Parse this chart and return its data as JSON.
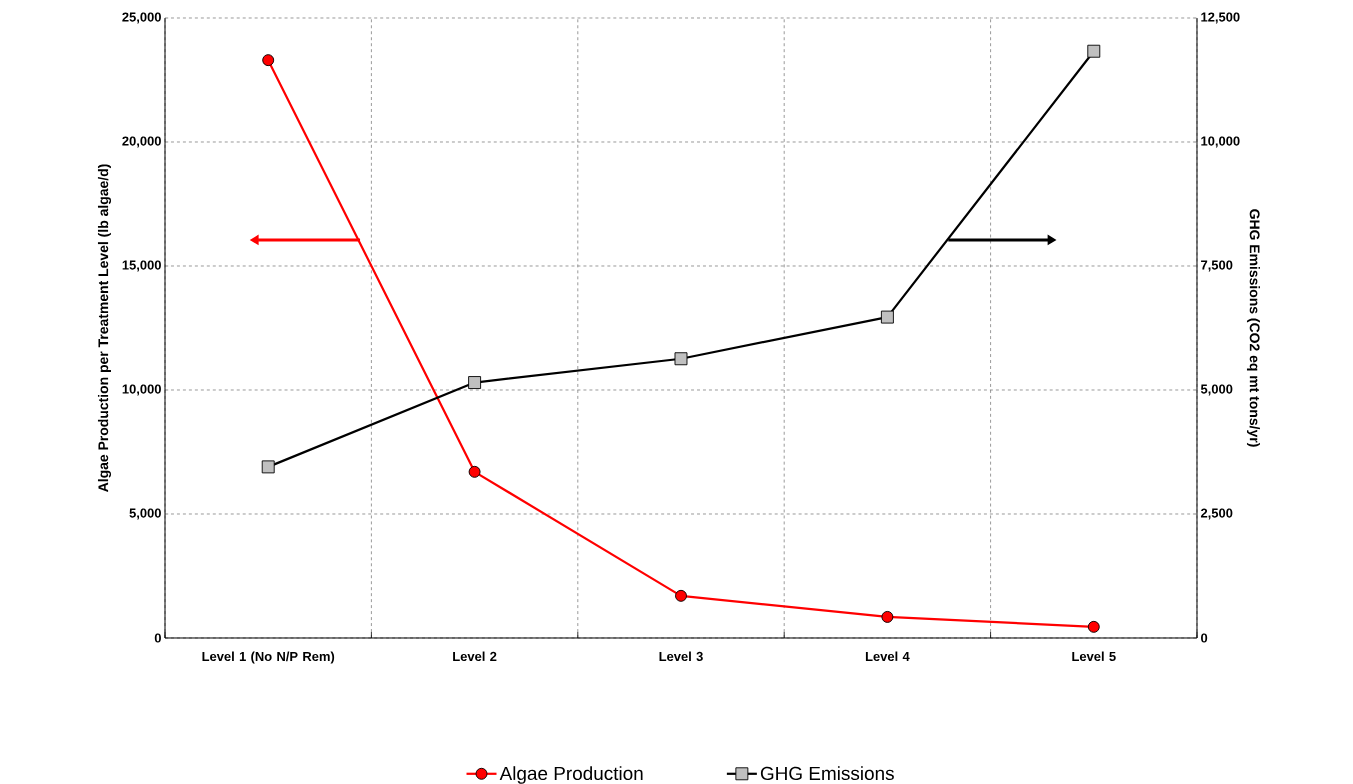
{
  "chart_data": {
    "type": "line",
    "ylabel": "Algae Production per Treatment Level (lb algae/d)",
    "y2label": "GHG Emissions (CO2 eq mt tons/yr)",
    "categories": [
      "Level 1 (No N/P Rem)",
      "Level 2",
      "Level 3",
      "Level 4",
      "Level 5"
    ],
    "series": [
      {
        "name": "Algae Production",
        "color": "#ff0000",
        "marker": "circle",
        "values": [
          23300,
          6700,
          1700,
          850,
          450
        ]
      },
      {
        "name": "GHG Emissions",
        "color": "#000000",
        "marker": "square",
        "axis": "y2",
        "values": [
          3450,
          5150,
          5630,
          6470,
          11830
        ]
      }
    ],
    "ylim": [
      0,
      25000
    ],
    "yticks": [
      {
        "value": 0,
        "label": "0"
      },
      {
        "value": 5000,
        "label": "5,000"
      },
      {
        "value": 10000,
        "label": "10,000"
      },
      {
        "value": 15000,
        "label": "15,000"
      },
      {
        "value": 20000,
        "label": "20,000"
      },
      {
        "value": 25000,
        "label": "25,000"
      }
    ],
    "y2lim": [
      0,
      12500
    ],
    "y2ticks": [
      {
        "value": 0,
        "label": "0"
      },
      {
        "value": 2500,
        "label": "2,500"
      },
      {
        "value": 5000,
        "label": "5,000"
      },
      {
        "value": 7500,
        "label": "7,500"
      },
      {
        "value": 10000,
        "label": "10,000"
      },
      {
        "value": 12500,
        "label": "12,500"
      }
    ],
    "grid": true,
    "legend": "bottom",
    "line_style": "solid"
  }
}
